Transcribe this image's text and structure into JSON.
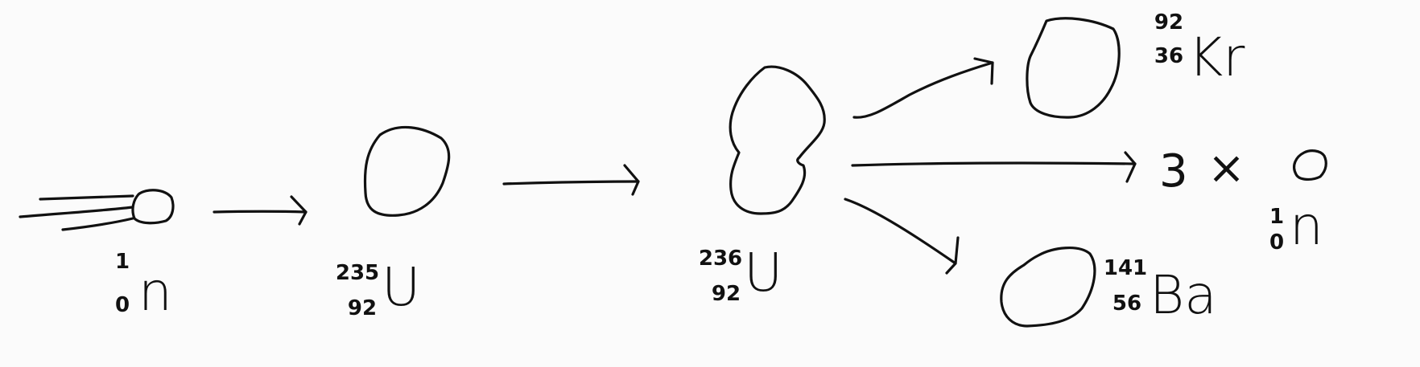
{
  "diagram": {
    "neutron": {
      "mass": "1",
      "atomic": "0",
      "symbol": "n"
    },
    "uranium235": {
      "mass": "235",
      "atomic": "92",
      "symbol": "U"
    },
    "uranium236": {
      "mass": "236",
      "atomic": "92",
      "symbol": "U"
    },
    "krypton": {
      "mass": "92",
      "atomic": "36",
      "symbol": "Kr"
    },
    "barium": {
      "mass": "141",
      "atomic": "56",
      "symbol": "Ba"
    },
    "product_neutrons": {
      "coefficient": "3",
      "times_sign": "×",
      "mass": "1",
      "atomic": "0",
      "symbol": "n"
    }
  }
}
